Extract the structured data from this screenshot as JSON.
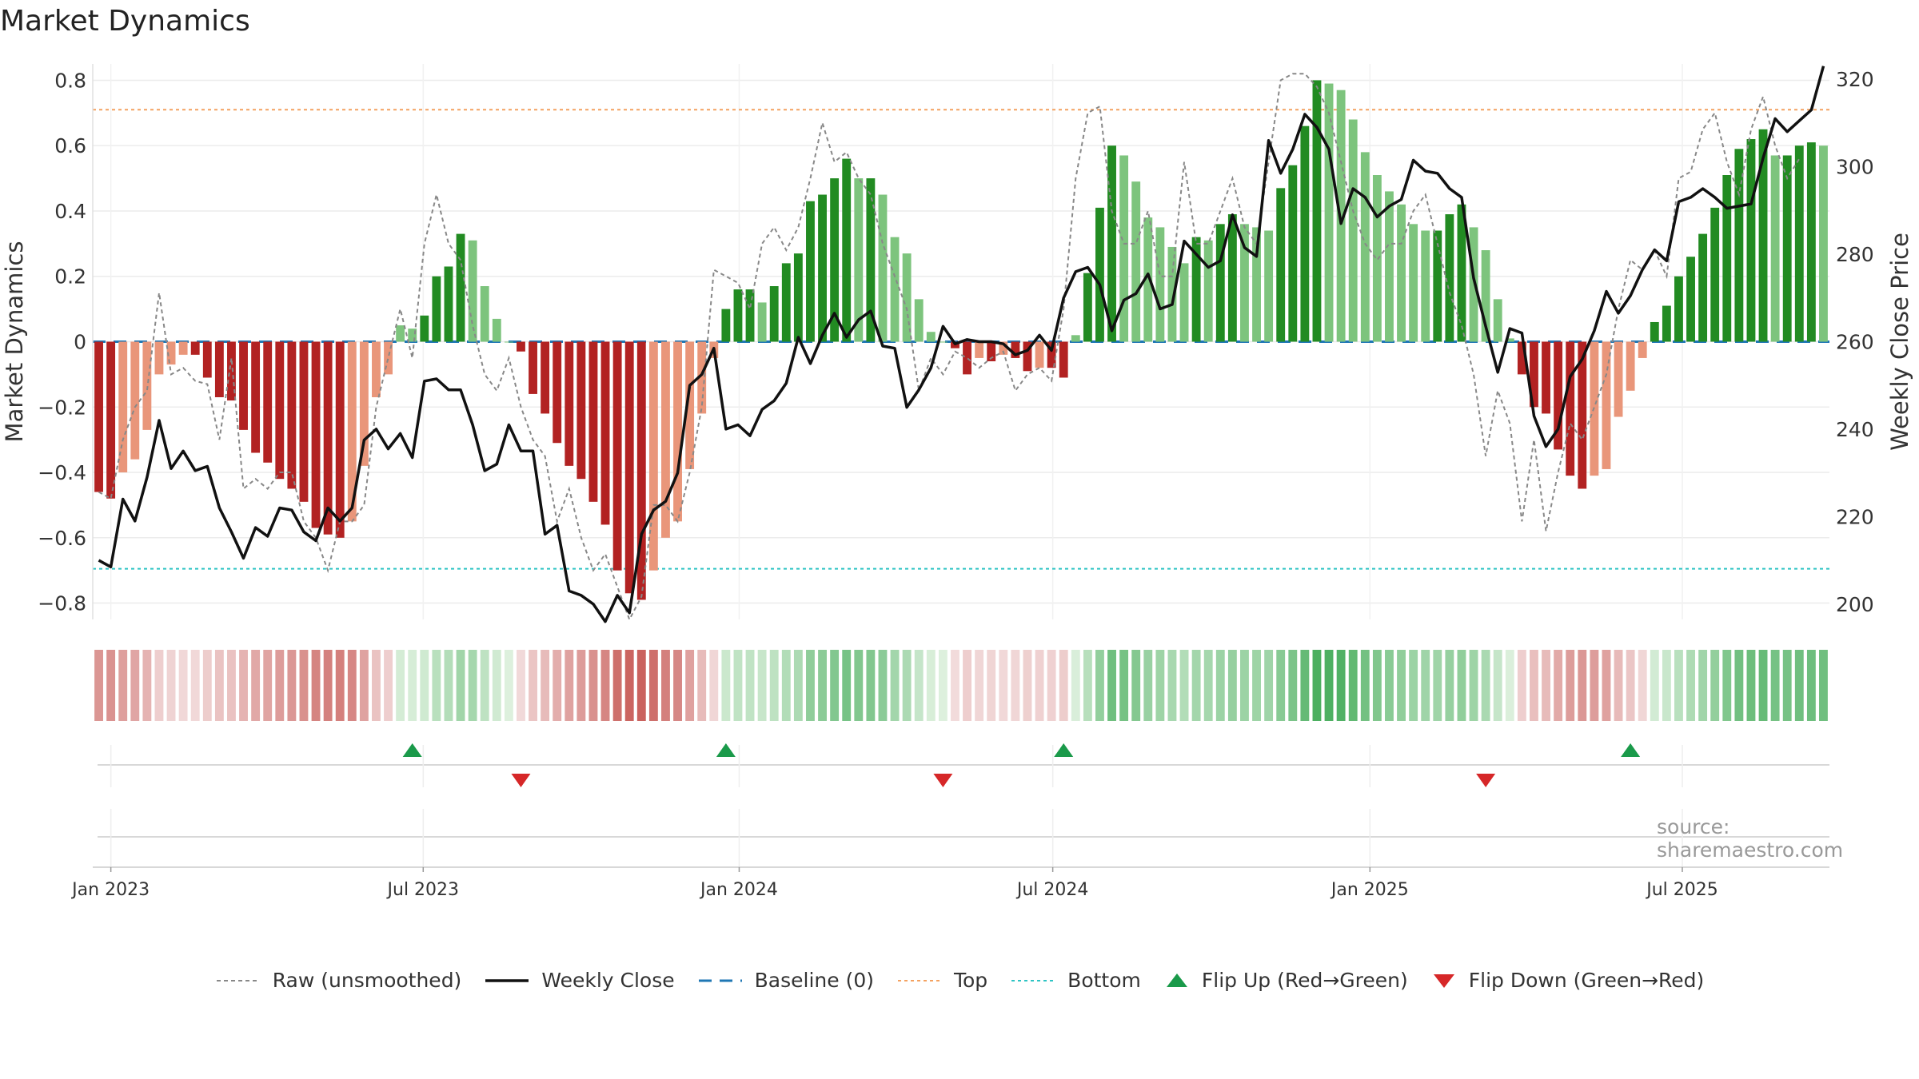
{
  "page_title": "Market Dynamics",
  "source_note": "source: sharemaestro.com",
  "colors": {
    "strong_red": "#b22222",
    "light_red": "#e9967a",
    "strong_green": "#228b22",
    "light_green": "#7dc47d",
    "raw_line": "#888888",
    "close_line": "#111111",
    "baseline": "#1f77b4",
    "top_line": "#f4a261",
    "bottom_line": "#2ec4c4",
    "flip_up": "#1a9a4a",
    "flip_down": "#d62728"
  },
  "chart_data": {
    "type": "bar",
    "title": "Market Dynamics",
    "ylabel_left": "Market Dynamics",
    "ylabel_right": "Weekly Close Price",
    "ylim_left": [
      -0.85,
      0.85
    ],
    "ylim_right": [
      196.5,
      323.5
    ],
    "yticks_left": [
      "−0.8",
      "−0.6",
      "−0.4",
      "−0.2",
      "0",
      "0.2",
      "0.4",
      "0.6",
      "0.8"
    ],
    "yticks_left_values": [
      -0.8,
      -0.6,
      -0.4,
      -0.2,
      0,
      0.2,
      0.4,
      0.6,
      0.8
    ],
    "yticks_right": [
      "200",
      "220",
      "240",
      "260",
      "280",
      "300",
      "320"
    ],
    "yticks_right_values": [
      200,
      220,
      240,
      260,
      280,
      300,
      320
    ],
    "x_start_date": "2022-12-26",
    "weeks": 144,
    "x_ticks": [
      {
        "label": "Jan 2023",
        "week": 1
      },
      {
        "label": "Jul 2023",
        "week": 26.9
      },
      {
        "label": "Jan 2024",
        "week": 53.1
      },
      {
        "label": "Jul 2024",
        "week": 79.1
      },
      {
        "label": "Jan 2025",
        "week": 105.4
      },
      {
        "label": "Jul 2025",
        "week": 131.3
      }
    ],
    "top_level": 0.71,
    "bottom_level": -0.695,
    "baseline_level": 0,
    "momentum": [
      -0.46,
      -0.48,
      -0.4,
      -0.36,
      -0.27,
      -0.1,
      -0.07,
      -0.04,
      -0.04,
      -0.11,
      -0.17,
      -0.18,
      -0.27,
      -0.34,
      -0.37,
      -0.42,
      -0.45,
      -0.49,
      -0.57,
      -0.59,
      -0.6,
      -0.55,
      -0.38,
      -0.17,
      -0.1,
      0.05,
      0.04,
      0.08,
      0.2,
      0.23,
      0.33,
      0.31,
      0.17,
      0.07,
      0.0,
      -0.03,
      -0.16,
      -0.22,
      -0.31,
      -0.38,
      -0.42,
      -0.49,
      -0.56,
      -0.7,
      -0.77,
      -0.79,
      -0.7,
      -0.6,
      -0.55,
      -0.39,
      -0.22,
      -0.05,
      0.1,
      0.16,
      0.16,
      0.12,
      0.17,
      0.24,
      0.27,
      0.43,
      0.45,
      0.5,
      0.56,
      0.5,
      0.5,
      0.45,
      0.32,
      0.27,
      0.13,
      0.03,
      0.0,
      -0.02,
      -0.1,
      -0.05,
      -0.06,
      -0.04,
      -0.05,
      -0.09,
      -0.08,
      -0.08,
      -0.11,
      0.02,
      0.21,
      0.41,
      0.6,
      0.57,
      0.49,
      0.38,
      0.35,
      0.29,
      0.24,
      0.32,
      0.31,
      0.36,
      0.39,
      0.36,
      0.35,
      0.34,
      0.47,
      0.54,
      0.66,
      0.8,
      0.79,
      0.77,
      0.68,
      0.58,
      0.51,
      0.46,
      0.42,
      0.36,
      0.34,
      0.34,
      0.39,
      0.42,
      0.35,
      0.28,
      0.13,
      0.01,
      -0.1,
      -0.2,
      -0.22,
      -0.33,
      -0.41,
      -0.45,
      -0.41,
      -0.39,
      -0.23,
      -0.15,
      -0.05,
      0.06,
      0.11,
      0.2,
      0.26,
      0.33,
      0.41,
      0.51,
      0.59,
      0.62,
      0.65,
      0.57,
      0.57,
      0.6,
      0.61,
      0.6
    ],
    "raw": [
      -0.46,
      -0.48,
      -0.3,
      -0.2,
      -0.15,
      0.15,
      -0.1,
      -0.08,
      -0.12,
      -0.13,
      -0.3,
      -0.05,
      -0.45,
      -0.42,
      -0.45,
      -0.4,
      -0.4,
      -0.55,
      -0.6,
      -0.7,
      -0.55,
      -0.55,
      -0.5,
      -0.2,
      -0.05,
      0.1,
      -0.05,
      0.3,
      0.45,
      0.3,
      0.25,
      0.05,
      -0.1,
      -0.15,
      -0.05,
      -0.2,
      -0.3,
      -0.35,
      -0.55,
      -0.45,
      -0.6,
      -0.7,
      -0.65,
      -0.75,
      -0.85,
      -0.78,
      -0.5,
      -0.5,
      -0.55,
      -0.4,
      -0.2,
      0.22,
      0.2,
      0.18,
      0.1,
      0.3,
      0.35,
      0.28,
      0.35,
      0.5,
      0.67,
      0.55,
      0.58,
      0.5,
      0.45,
      0.3,
      0.2,
      0.1,
      -0.15,
      -0.05,
      -0.1,
      -0.03,
      -0.05,
      -0.08,
      -0.05,
      -0.03,
      -0.15,
      -0.1,
      -0.08,
      -0.12,
      0.1,
      0.5,
      0.7,
      0.72,
      0.4,
      0.3,
      0.3,
      0.4,
      0.2,
      0.2,
      0.55,
      0.3,
      0.3,
      0.4,
      0.5,
      0.35,
      0.3,
      0.55,
      0.8,
      0.82,
      0.82,
      0.78,
      0.7,
      0.55,
      0.4,
      0.3,
      0.25,
      0.3,
      0.3,
      0.4,
      0.45,
      0.3,
      0.15,
      0.05,
      -0.1,
      -0.35,
      -0.15,
      -0.25,
      -0.55,
      -0.3,
      -0.58,
      -0.4,
      -0.25,
      -0.3,
      -0.2,
      -0.1,
      0.1,
      0.25,
      0.22,
      0.28,
      0.2,
      0.5,
      0.52,
      0.65,
      0.7,
      0.55,
      0.45,
      0.65,
      0.75,
      0.6,
      0.5,
      0.56
    ],
    "close": [
      210,
      208.5,
      224,
      219,
      229,
      242,
      231,
      235,
      230.5,
      231.5,
      222,
      216.5,
      210.5,
      217.5,
      215.5,
      222,
      221.5,
      216.5,
      214.5,
      222,
      219,
      222,
      237.5,
      240,
      235.5,
      239,
      233.5,
      251,
      251.5,
      249,
      249,
      241,
      230.5,
      232,
      241,
      235,
      235,
      216,
      218,
      203,
      202,
      200,
      196,
      202,
      198,
      216,
      221.5,
      223.5,
      230,
      250,
      252.5,
      258.5,
      240,
      241,
      238.5,
      244.5,
      246.5,
      250.5,
      261,
      255,
      261.5,
      266.5,
      261,
      265,
      267,
      259,
      258.5,
      245,
      249,
      254,
      263.5,
      259.5,
      260.5,
      260,
      260,
      259.5,
      257,
      258,
      261.5,
      258,
      270,
      276,
      277,
      273,
      262.5,
      269.5,
      271,
      275.5,
      267.5,
      268.5,
      283,
      280,
      277,
      278.5,
      289,
      281.5,
      279.5,
      306,
      298.5,
      304,
      312,
      309,
      304,
      287,
      295,
      293,
      288.5,
      291,
      292.5,
      301.5,
      299,
      298.5,
      295,
      293,
      274.5,
      263.5,
      253,
      263,
      262,
      243,
      236,
      240,
      252,
      256,
      262.5,
      271.5,
      266.5,
      270.5,
      276.5,
      281,
      278.5,
      292,
      293,
      295,
      293,
      290.5,
      291,
      291.5,
      302,
      311,
      308,
      310.5,
      313,
      323
    ]
  },
  "strip_a": {
    "rows": "continuous momentum strip"
  },
  "markers": {
    "flip_up_weeks": [
      26,
      52,
      80,
      127
    ],
    "flip_down_weeks": [
      35,
      70,
      115
    ]
  },
  "legend": [
    {
      "key": "raw",
      "label": "Raw (unsmoothed)"
    },
    {
      "key": "close",
      "label": "Weekly Close"
    },
    {
      "key": "baseline",
      "label": "Baseline (0)"
    },
    {
      "key": "top",
      "label": "Top"
    },
    {
      "key": "bottom",
      "label": "Bottom"
    },
    {
      "key": "flip_up",
      "label": "Flip Up (Red→Green)"
    },
    {
      "key": "flip_down",
      "label": "Flip Down (Green→Red)"
    }
  ]
}
